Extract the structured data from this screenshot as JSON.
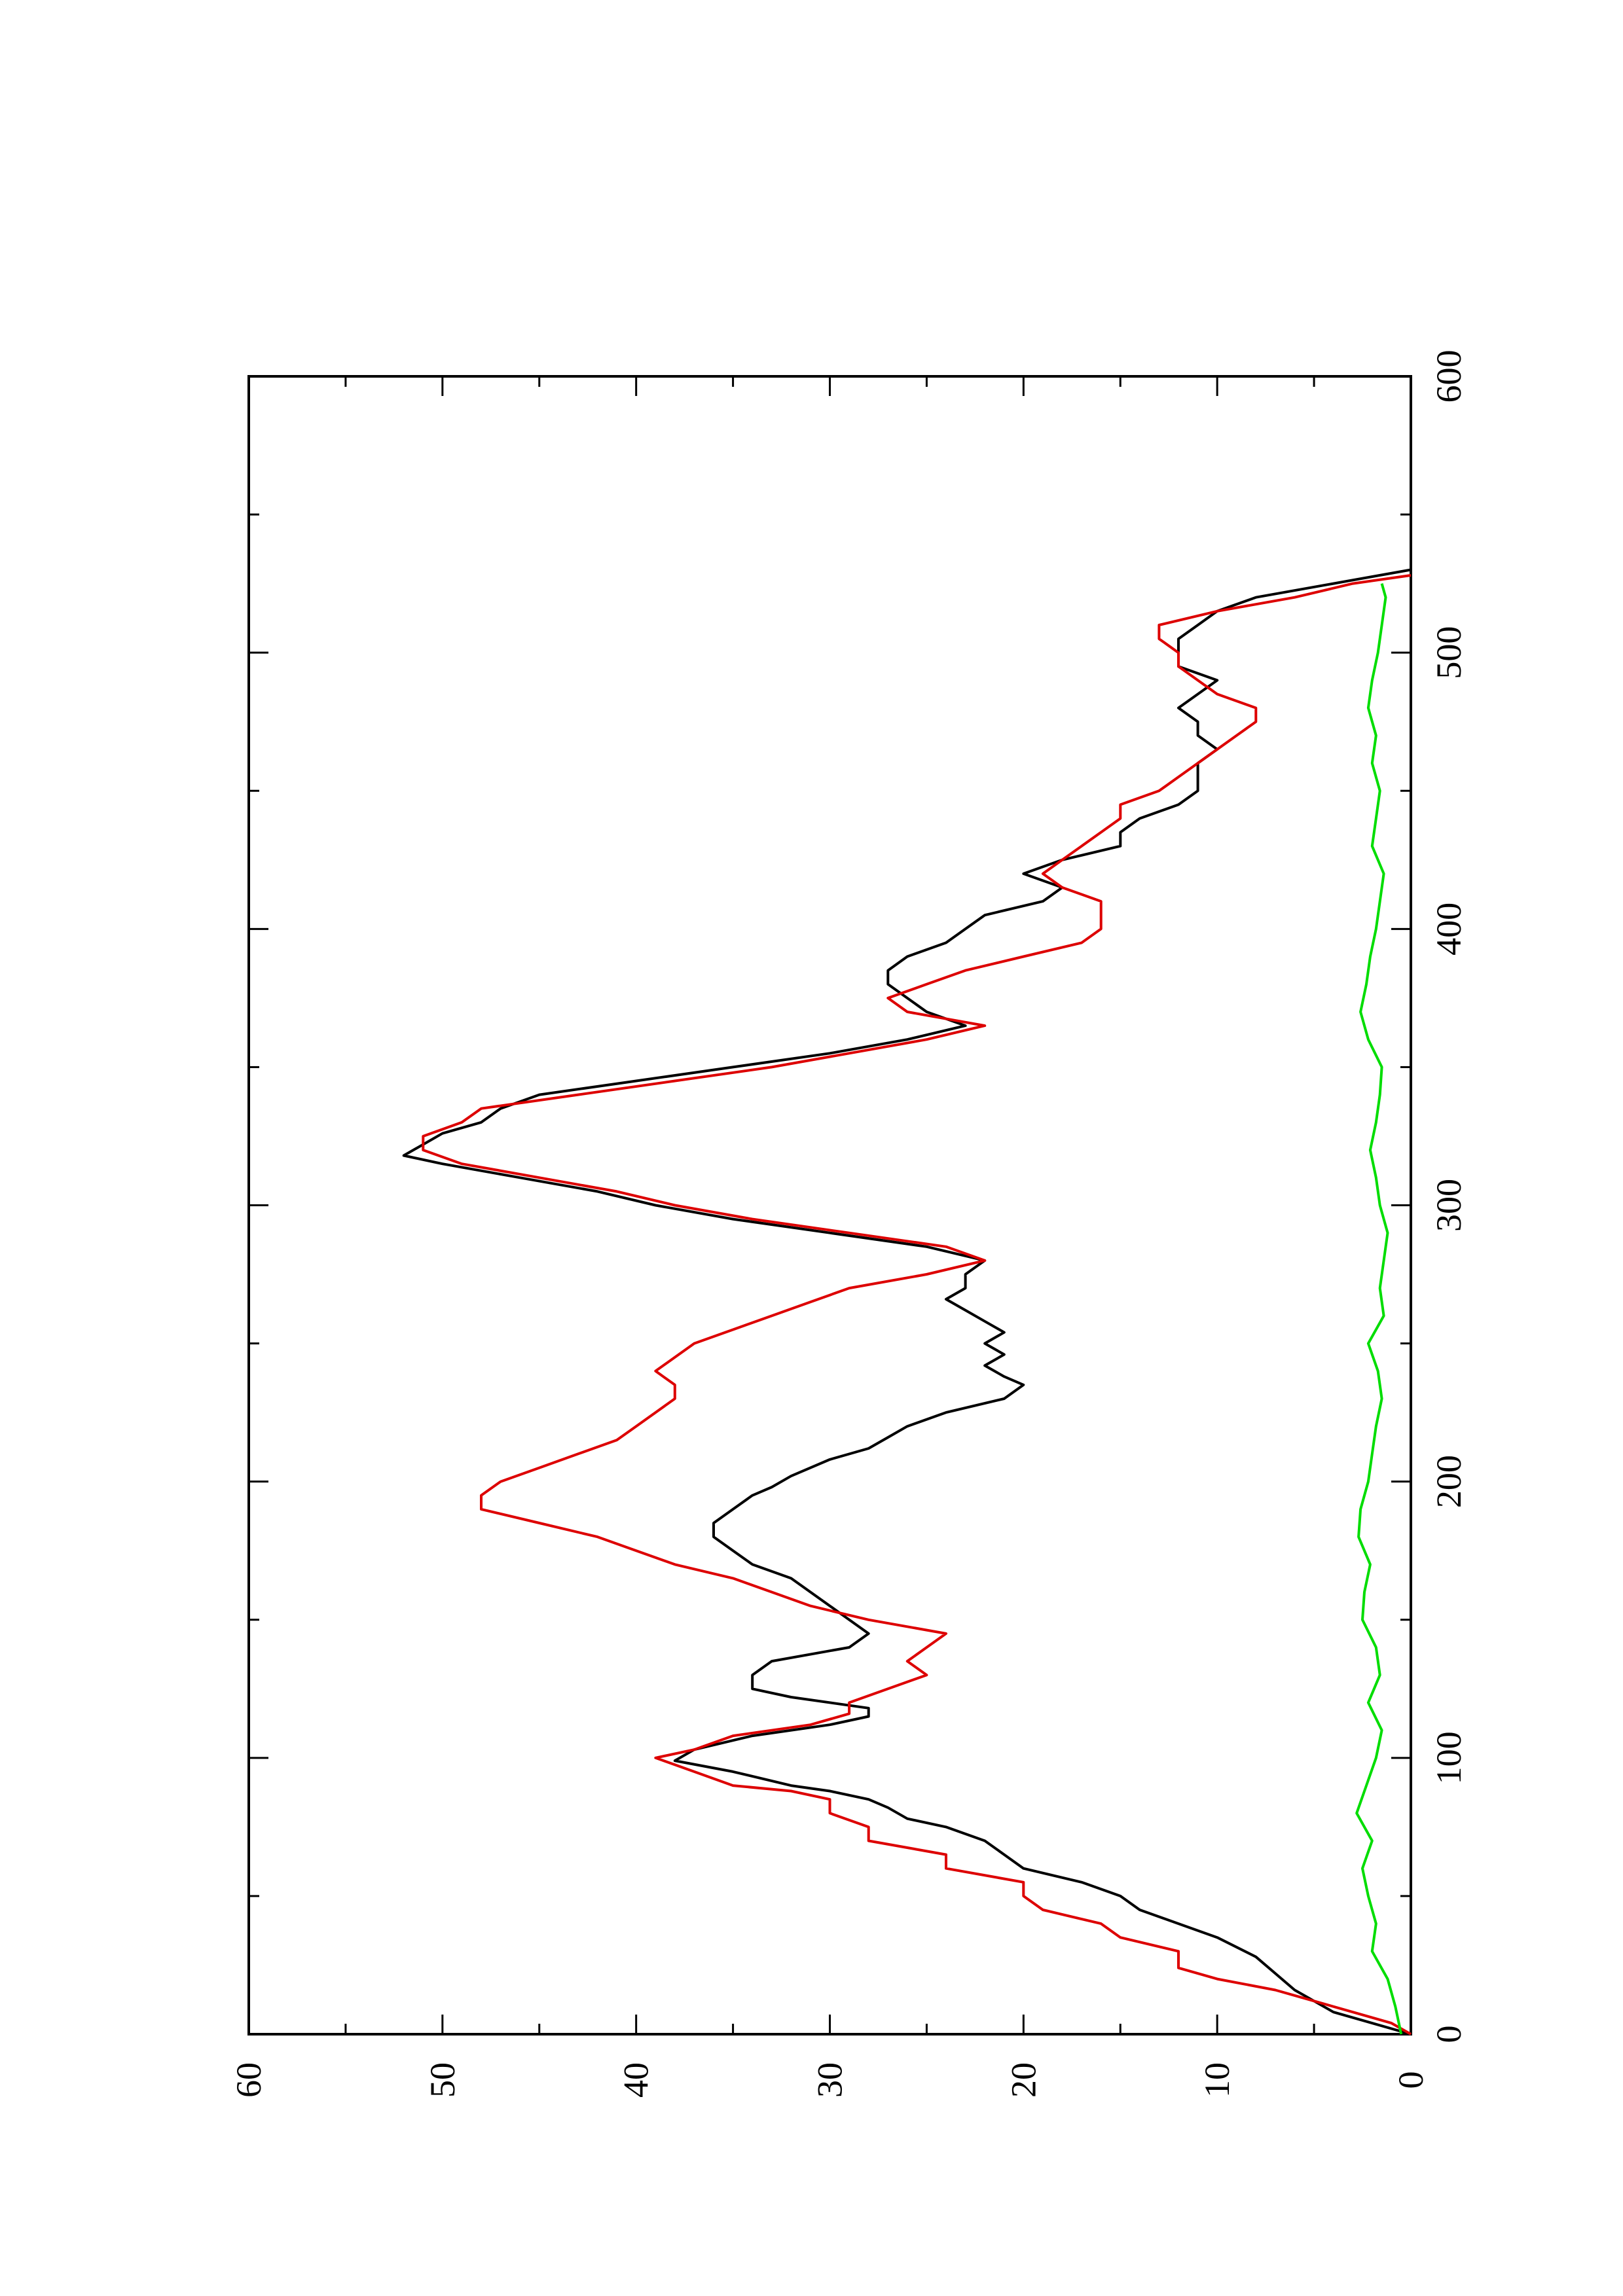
{
  "chart_data": {
    "type": "line",
    "orientation": "rotated-90-counterclockwise",
    "title": "",
    "xlabel": "",
    "ylabel": "",
    "xlim": [
      0,
      600
    ],
    "ylim": [
      0,
      60
    ],
    "x_ticks": [
      {
        "value": 0,
        "label": "0"
      },
      {
        "value": 100,
        "label": "100"
      },
      {
        "value": 200,
        "label": "200"
      },
      {
        "value": 300,
        "label": "300"
      },
      {
        "value": 400,
        "label": "400"
      },
      {
        "value": 500,
        "label": "500"
      },
      {
        "value": 600,
        "label": "600"
      }
    ],
    "x_minor_ticks": [
      50,
      150,
      250,
      350,
      450,
      550
    ],
    "y_ticks": [
      {
        "value": 0,
        "label": "0"
      },
      {
        "value": 10,
        "label": "10"
      },
      {
        "value": 20,
        "label": "20"
      },
      {
        "value": 30,
        "label": "30"
      },
      {
        "value": 40,
        "label": "40"
      },
      {
        "value": 50,
        "label": "50"
      },
      {
        "value": 60,
        "label": "60"
      }
    ],
    "y_minor_ticks": [
      5,
      15,
      25,
      35,
      45,
      55
    ],
    "grid": false,
    "legend": "none",
    "series": [
      {
        "color": "#000000",
        "points": [
          [
            0,
            0
          ],
          [
            4,
            2
          ],
          [
            8,
            4
          ],
          [
            12,
            5
          ],
          [
            16,
            6
          ],
          [
            22,
            7
          ],
          [
            28,
            8
          ],
          [
            35,
            10
          ],
          [
            40,
            12
          ],
          [
            45,
            14
          ],
          [
            50,
            15
          ],
          [
            55,
            17
          ],
          [
            60,
            20
          ],
          [
            65,
            21
          ],
          [
            70,
            22
          ],
          [
            75,
            24
          ],
          [
            78,
            26
          ],
          [
            82,
            27
          ],
          [
            85,
            28
          ],
          [
            88,
            30
          ],
          [
            90,
            32
          ],
          [
            95,
            35
          ],
          [
            99,
            38
          ],
          [
            103,
            37
          ],
          [
            108,
            34
          ],
          [
            112,
            30
          ],
          [
            115,
            28
          ],
          [
            118,
            28
          ],
          [
            122,
            32
          ],
          [
            125,
            34
          ],
          [
            130,
            34
          ],
          [
            135,
            33
          ],
          [
            140,
            29
          ],
          [
            145,
            28
          ],
          [
            150,
            29
          ],
          [
            155,
            30
          ],
          [
            160,
            31
          ],
          [
            165,
            32
          ],
          [
            170,
            34
          ],
          [
            175,
            35
          ],
          [
            180,
            36
          ],
          [
            185,
            36
          ],
          [
            190,
            35
          ],
          [
            195,
            34
          ],
          [
            198,
            33
          ],
          [
            202,
            32
          ],
          [
            208,
            30
          ],
          [
            212,
            28
          ],
          [
            216,
            27
          ],
          [
            220,
            26
          ],
          [
            225,
            24
          ],
          [
            230,
            21
          ],
          [
            235,
            20
          ],
          [
            238,
            21
          ],
          [
            242,
            22
          ],
          [
            246,
            21
          ],
          [
            250,
            22
          ],
          [
            254,
            21
          ],
          [
            258,
            22
          ],
          [
            262,
            23
          ],
          [
            266,
            24
          ],
          [
            270,
            23
          ],
          [
            275,
            23
          ],
          [
            280,
            22
          ],
          [
            285,
            25
          ],
          [
            290,
            30
          ],
          [
            295,
            35
          ],
          [
            300,
            39
          ],
          [
            305,
            42
          ],
          [
            310,
            46
          ],
          [
            315,
            50
          ],
          [
            318,
            52
          ],
          [
            322,
            51
          ],
          [
            326,
            50
          ],
          [
            330,
            48
          ],
          [
            335,
            47
          ],
          [
            340,
            45
          ],
          [
            345,
            40
          ],
          [
            350,
            35
          ],
          [
            355,
            30
          ],
          [
            360,
            26
          ],
          [
            365,
            23
          ],
          [
            370,
            25
          ],
          [
            375,
            26
          ],
          [
            380,
            27
          ],
          [
            385,
            27
          ],
          [
            390,
            26
          ],
          [
            395,
            24
          ],
          [
            400,
            23
          ],
          [
            405,
            22
          ],
          [
            410,
            19
          ],
          [
            415,
            18
          ],
          [
            420,
            20
          ],
          [
            425,
            18
          ],
          [
            430,
            15
          ],
          [
            435,
            15
          ],
          [
            440,
            14
          ],
          [
            445,
            12
          ],
          [
            450,
            11
          ],
          [
            455,
            11
          ],
          [
            460,
            11
          ],
          [
            465,
            10
          ],
          [
            470,
            11
          ],
          [
            475,
            11
          ],
          [
            480,
            12
          ],
          [
            485,
            11
          ],
          [
            490,
            10
          ],
          [
            495,
            12
          ],
          [
            500,
            12
          ],
          [
            505,
            12
          ],
          [
            510,
            11
          ],
          [
            515,
            10
          ],
          [
            520,
            8
          ],
          [
            525,
            4
          ],
          [
            530,
            0
          ]
        ]
      },
      {
        "color": "#dd0000",
        "points": [
          [
            0,
            0
          ],
          [
            4,
            1
          ],
          [
            8,
            3
          ],
          [
            12,
            5
          ],
          [
            16,
            7
          ],
          [
            20,
            10
          ],
          [
            24,
            12
          ],
          [
            30,
            12
          ],
          [
            35,
            15
          ],
          [
            40,
            16
          ],
          [
            45,
            19
          ],
          [
            50,
            20
          ],
          [
            55,
            20
          ],
          [
            60,
            24
          ],
          [
            65,
            24
          ],
          [
            70,
            28
          ],
          [
            75,
            28
          ],
          [
            80,
            30
          ],
          [
            85,
            30
          ],
          [
            88,
            32
          ],
          [
            90,
            35
          ],
          [
            95,
            37
          ],
          [
            100,
            39
          ],
          [
            103,
            37
          ],
          [
            108,
            35
          ],
          [
            112,
            31
          ],
          [
            116,
            29
          ],
          [
            120,
            29
          ],
          [
            125,
            27
          ],
          [
            130,
            25
          ],
          [
            135,
            26
          ],
          [
            140,
            25
          ],
          [
            145,
            24
          ],
          [
            150,
            28
          ],
          [
            155,
            31
          ],
          [
            160,
            33
          ],
          [
            165,
            35
          ],
          [
            170,
            38
          ],
          [
            175,
            40
          ],
          [
            180,
            42
          ],
          [
            185,
            45
          ],
          [
            190,
            48
          ],
          [
            195,
            48
          ],
          [
            200,
            47
          ],
          [
            205,
            45
          ],
          [
            210,
            43
          ],
          [
            215,
            41
          ],
          [
            220,
            40
          ],
          [
            225,
            39
          ],
          [
            230,
            38
          ],
          [
            235,
            38
          ],
          [
            240,
            39
          ],
          [
            245,
            38
          ],
          [
            250,
            37
          ],
          [
            255,
            35
          ],
          [
            260,
            33
          ],
          [
            265,
            31
          ],
          [
            270,
            29
          ],
          [
            275,
            25
          ],
          [
            280,
            22
          ],
          [
            285,
            24
          ],
          [
            290,
            29
          ],
          [
            295,
            34
          ],
          [
            300,
            38
          ],
          [
            305,
            41
          ],
          [
            310,
            45
          ],
          [
            315,
            49
          ],
          [
            320,
            51
          ],
          [
            325,
            51
          ],
          [
            330,
            49
          ],
          [
            335,
            48
          ],
          [
            340,
            43
          ],
          [
            345,
            38
          ],
          [
            350,
            33
          ],
          [
            355,
            29
          ],
          [
            360,
            25
          ],
          [
            365,
            22
          ],
          [
            370,
            26
          ],
          [
            375,
            27
          ],
          [
            380,
            25
          ],
          [
            385,
            23
          ],
          [
            390,
            20
          ],
          [
            395,
            17
          ],
          [
            400,
            16
          ],
          [
            405,
            16
          ],
          [
            410,
            16
          ],
          [
            415,
            18
          ],
          [
            420,
            19
          ],
          [
            425,
            18
          ],
          [
            430,
            17
          ],
          [
            435,
            16
          ],
          [
            440,
            15
          ],
          [
            445,
            15
          ],
          [
            450,
            13
          ],
          [
            455,
            12
          ],
          [
            460,
            11
          ],
          [
            465,
            10
          ],
          [
            470,
            9
          ],
          [
            475,
            8
          ],
          [
            480,
            8
          ],
          [
            485,
            10
          ],
          [
            490,
            11
          ],
          [
            495,
            12
          ],
          [
            500,
            12
          ],
          [
            505,
            13
          ],
          [
            510,
            13
          ],
          [
            515,
            10
          ],
          [
            520,
            6
          ],
          [
            525,
            3
          ],
          [
            528,
            0
          ]
        ]
      },
      {
        "color": "#00dd00",
        "points": [
          [
            0,
            0.5
          ],
          [
            10,
            0.8
          ],
          [
            20,
            1.2
          ],
          [
            30,
            2.0
          ],
          [
            40,
            1.8
          ],
          [
            50,
            2.2
          ],
          [
            60,
            2.5
          ],
          [
            70,
            2.0
          ],
          [
            80,
            2.8
          ],
          [
            90,
            2.3
          ],
          [
            100,
            1.8
          ],
          [
            110,
            1.5
          ],
          [
            120,
            2.2
          ],
          [
            130,
            1.6
          ],
          [
            140,
            1.8
          ],
          [
            150,
            2.5
          ],
          [
            160,
            2.4
          ],
          [
            170,
            2.1
          ],
          [
            180,
            2.7
          ],
          [
            190,
            2.6
          ],
          [
            200,
            2.2
          ],
          [
            210,
            2.0
          ],
          [
            220,
            1.8
          ],
          [
            230,
            1.5
          ],
          [
            240,
            1.7
          ],
          [
            250,
            2.2
          ],
          [
            260,
            1.4
          ],
          [
            270,
            1.6
          ],
          [
            280,
            1.4
          ],
          [
            290,
            1.2
          ],
          [
            300,
            1.6
          ],
          [
            310,
            1.8
          ],
          [
            320,
            2.1
          ],
          [
            330,
            1.8
          ],
          [
            340,
            1.6
          ],
          [
            350,
            1.5
          ],
          [
            360,
            2.2
          ],
          [
            370,
            2.6
          ],
          [
            380,
            2.3
          ],
          [
            390,
            2.1
          ],
          [
            400,
            1.8
          ],
          [
            410,
            1.6
          ],
          [
            420,
            1.4
          ],
          [
            430,
            2.0
          ],
          [
            440,
            1.8
          ],
          [
            450,
            1.6
          ],
          [
            460,
            2.0
          ],
          [
            470,
            1.8
          ],
          [
            480,
            2.2
          ],
          [
            490,
            2.0
          ],
          [
            500,
            1.7
          ],
          [
            510,
            1.5
          ],
          [
            520,
            1.3
          ],
          [
            525,
            1.5
          ]
        ]
      }
    ]
  }
}
